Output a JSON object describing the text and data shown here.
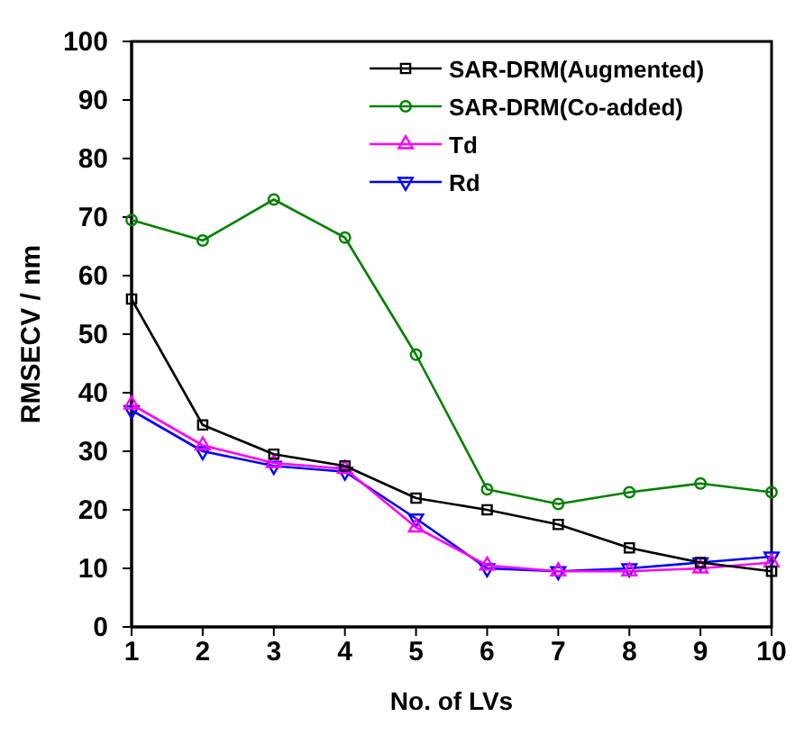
{
  "chart_data": {
    "type": "line",
    "xlabel": "No. of LVs",
    "ylabel": "RMSECV / nm",
    "x": [
      1,
      2,
      3,
      4,
      5,
      6,
      7,
      8,
      9,
      10
    ],
    "series": [
      {
        "name": "SAR-DRM(Augmented)",
        "color": "#000000",
        "marker": "square",
        "values": [
          56,
          34.5,
          29.5,
          27.5,
          22,
          20,
          17.5,
          13.5,
          11,
          9.5
        ]
      },
      {
        "name": "SAR-DRM(Co-added)",
        "color": "#008000",
        "marker": "circle",
        "values": [
          69.5,
          66,
          73,
          66.5,
          46.5,
          23.5,
          21,
          23,
          24.5,
          23
        ]
      },
      {
        "name": "Td",
        "color": "#ff00ff",
        "marker": "triangle",
        "values": [
          38,
          31,
          28,
          27,
          17,
          10.5,
          9.5,
          9.5,
          10,
          11
        ]
      },
      {
        "name": "Rd",
        "color": "#0000ff",
        "marker": "triangle-down",
        "values": [
          37,
          30,
          27.5,
          26.5,
          18.5,
          10,
          9.5,
          10,
          11,
          12
        ]
      }
    ],
    "xlim": [
      1,
      10
    ],
    "xticks": [
      1,
      2,
      3,
      4,
      5,
      6,
      7,
      8,
      9,
      10
    ],
    "ylim": [
      0,
      100
    ],
    "yticks": [
      0,
      10,
      20,
      30,
      40,
      50,
      60,
      70,
      80,
      90,
      100
    ],
    "legend": "top right",
    "grid": false
  }
}
